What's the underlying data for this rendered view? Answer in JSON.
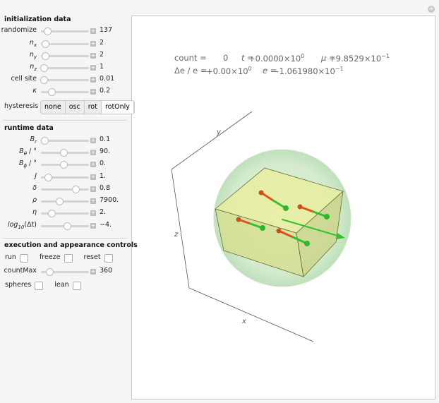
{
  "sections": [
    {
      "title": "initialization data",
      "controls": [
        {
          "label": "randomize",
          "value": "137"
        },
        {
          "label": "n",
          "sub": "x",
          "value": "2"
        },
        {
          "label": "n",
          "sub": "y",
          "value": "2"
        },
        {
          "label": "n",
          "sub": "z",
          "value": "1"
        },
        {
          "label": "cell site",
          "value": "0.01"
        },
        {
          "label": "κ",
          "value": "0.2"
        }
      ],
      "setter": {
        "label": "hysteresis",
        "options": [
          "none",
          "osc",
          "rot",
          "rotOnly"
        ],
        "selected": "rotOnly"
      }
    },
    {
      "title": "runtime data",
      "controls": [
        {
          "label": "B",
          "sub": "r",
          "value": "0.1"
        },
        {
          "label": "B",
          "sub": "θ",
          "suffix": " / °",
          "value": "90."
        },
        {
          "label": "B",
          "sub": "ϕ",
          "suffix": " / °",
          "value": "0."
        },
        {
          "label": "J",
          "value": "1."
        },
        {
          "label": "δ",
          "value": "0.8"
        },
        {
          "label": "ρ",
          "value": "7900."
        },
        {
          "label": "η",
          "value": "2."
        },
        {
          "label": "log",
          "sub": "10",
          "suffix": "(Δt)",
          "value": "−4."
        }
      ]
    },
    {
      "title": "execution and appearance controls",
      "checkboxes_top": [
        "run",
        "freeze",
        "reset"
      ],
      "controls": [
        {
          "label": "countMax",
          "value": "360"
        }
      ],
      "checkboxes_bottom": [
        "spheres",
        "lean"
      ]
    }
  ],
  "readouts": [
    [
      {
        "label": "count =",
        "value": "0"
      },
      {
        "label": "t =",
        "value": "+0.0000×10",
        "exp": "0"
      },
      {
        "label": "μ =",
        "value": "+9.8529×10",
        "exp": "−1"
      }
    ],
    [
      {
        "label": "Δe / e =",
        "value": "+0.00×10",
        "exp": "0"
      },
      {
        "label": "e =",
        "value": "−1.061980×10",
        "exp": "−1"
      }
    ]
  ],
  "axes": {
    "x": "x",
    "y": "y",
    "z": "z"
  }
}
